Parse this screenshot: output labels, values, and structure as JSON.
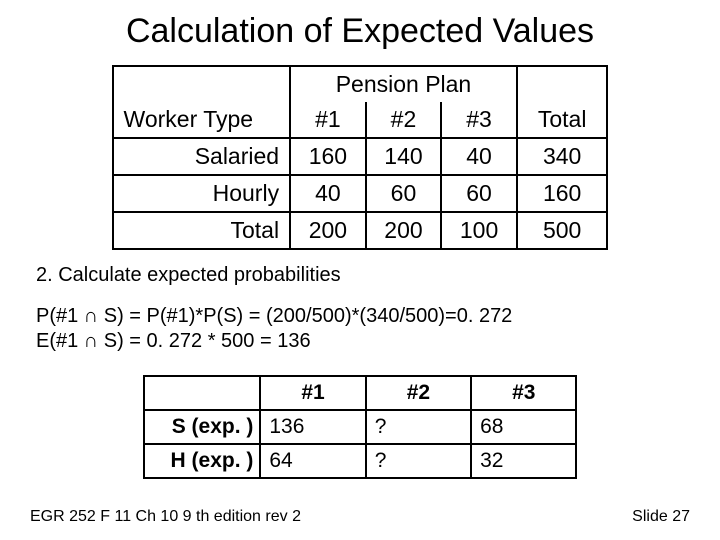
{
  "title": "Calculation of Expected Values",
  "table1": {
    "pension_header": "Pension Plan",
    "worker_type": "Worker Type",
    "c1": "#1",
    "c2": "#2",
    "c3": "#3",
    "total": "Total",
    "rows": [
      {
        "label": "Salaried",
        "v1": "160",
        "v2": "140",
        "v3": "40",
        "tot": "340"
      },
      {
        "label": "Hourly",
        "v1": "40",
        "v2": "60",
        "v3": "60",
        "tot": "160"
      },
      {
        "label": "Total",
        "v1": "200",
        "v2": "200",
        "v3": "100",
        "tot": "500"
      }
    ]
  },
  "step2": "2. Calculate expected probabilities",
  "formula1": "P(#1 ∩ S) = P(#1)*P(S) = (200/500)*(340/500)=0. 272",
  "formula2": "E(#1 ∩ S) = 0. 272 * 500 = 136",
  "table2": {
    "c1": "#1",
    "c2": "#2",
    "c3": "#3",
    "rows": [
      {
        "label": "S (exp. )",
        "v1": "136",
        "v2": "?",
        "v3": "68"
      },
      {
        "label": "H (exp. )",
        "v1": " 64",
        "v2": "?",
        "v3": "32"
      }
    ]
  },
  "footer_left": "EGR 252 F 11 Ch 10   9 th edition rev 2",
  "footer_right": "Slide 27"
}
